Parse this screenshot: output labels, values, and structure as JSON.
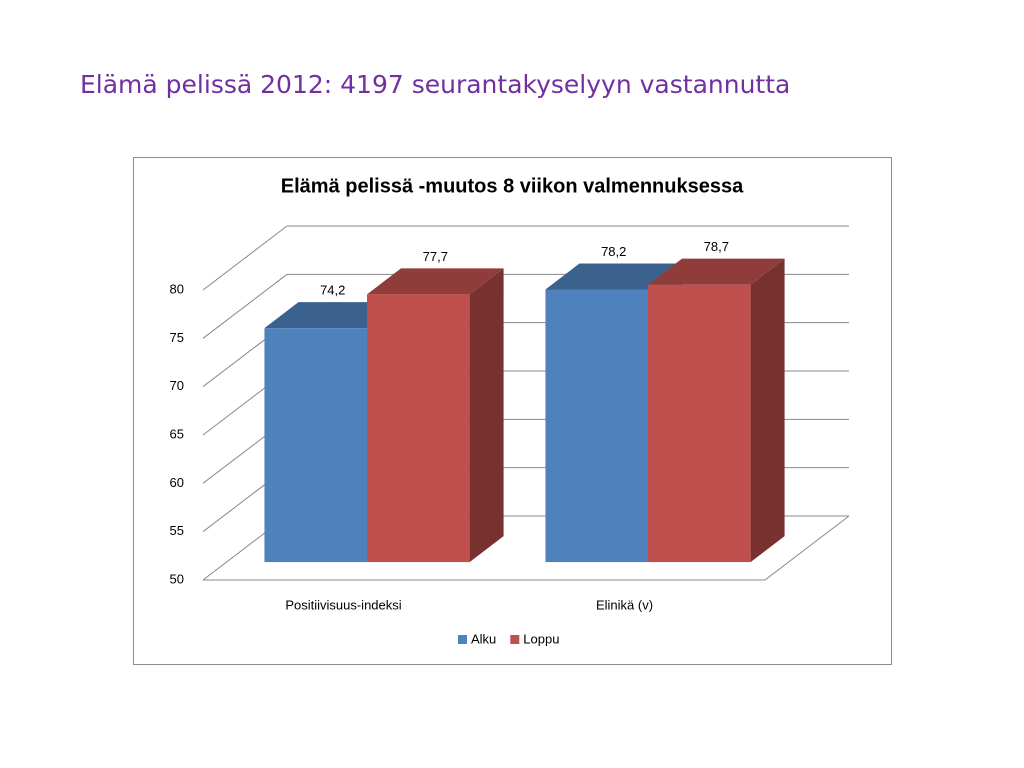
{
  "slide_title": "Elämä pelissä 2012: 4197 seurantakyselyyn vastannutta",
  "chart_data": {
    "type": "bar3d",
    "title": "Elämä pelissä -muutos 8 viikon valmennuksessa",
    "categories": [
      "Positiivisuus-indeksi",
      "Elinikä (v)"
    ],
    "series": [
      {
        "name": "Alku",
        "color": "#4f81bd",
        "values": [
          74.2,
          78.2
        ],
        "value_labels": [
          "74,2",
          "78,2"
        ]
      },
      {
        "name": "Loppu",
        "color": "#c0504d",
        "values": [
          77.7,
          78.7
        ],
        "value_labels": [
          "77,7",
          "78,7"
        ]
      }
    ],
    "ylim": [
      50,
      80
    ],
    "yticks": [
      50,
      55,
      60,
      65,
      70,
      75,
      80
    ],
    "grid": true,
    "legend": "bottom"
  }
}
